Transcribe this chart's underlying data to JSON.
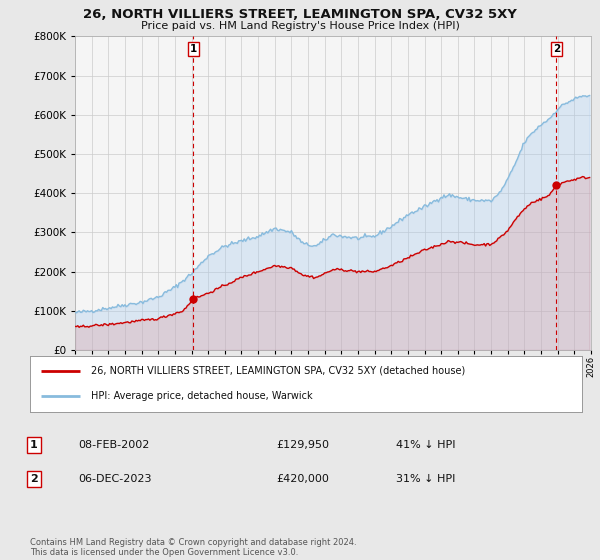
{
  "title": "26, NORTH VILLIERS STREET, LEAMINGTON SPA, CV32 5XY",
  "subtitle": "Price paid vs. HM Land Registry's House Price Index (HPI)",
  "ylim": [
    0,
    800000
  ],
  "yticks": [
    0,
    100000,
    200000,
    300000,
    400000,
    500000,
    600000,
    700000,
    800000
  ],
  "xlim_start": 1995,
  "xlim_end": 2026,
  "background_color": "#e8e8e8",
  "plot_background": "#f5f5f5",
  "grid_color": "#cccccc",
  "hpi_color": "#88bbdd",
  "hpi_fill_color": "#aaccee",
  "price_color": "#cc0000",
  "price_fill_color": "#dd8888",
  "marker1_date_x": 2002.1,
  "marker1_price": 129950,
  "marker1_label": "1",
  "marker2_date_x": 2023.92,
  "marker2_price": 420000,
  "marker2_label": "2",
  "legend_line1": "26, NORTH VILLIERS STREET, LEAMINGTON SPA, CV32 5XY (detached house)",
  "legend_line2": "HPI: Average price, detached house, Warwick",
  "annotation1_num": "1",
  "annotation1_date": "08-FEB-2002",
  "annotation1_price": "£129,950",
  "annotation1_hpi": "41% ↓ HPI",
  "annotation2_num": "2",
  "annotation2_date": "06-DEC-2023",
  "annotation2_price": "£420,000",
  "annotation2_hpi": "31% ↓ HPI",
  "footnote": "Contains HM Land Registry data © Crown copyright and database right 2024.\nThis data is licensed under the Open Government Licence v3.0."
}
